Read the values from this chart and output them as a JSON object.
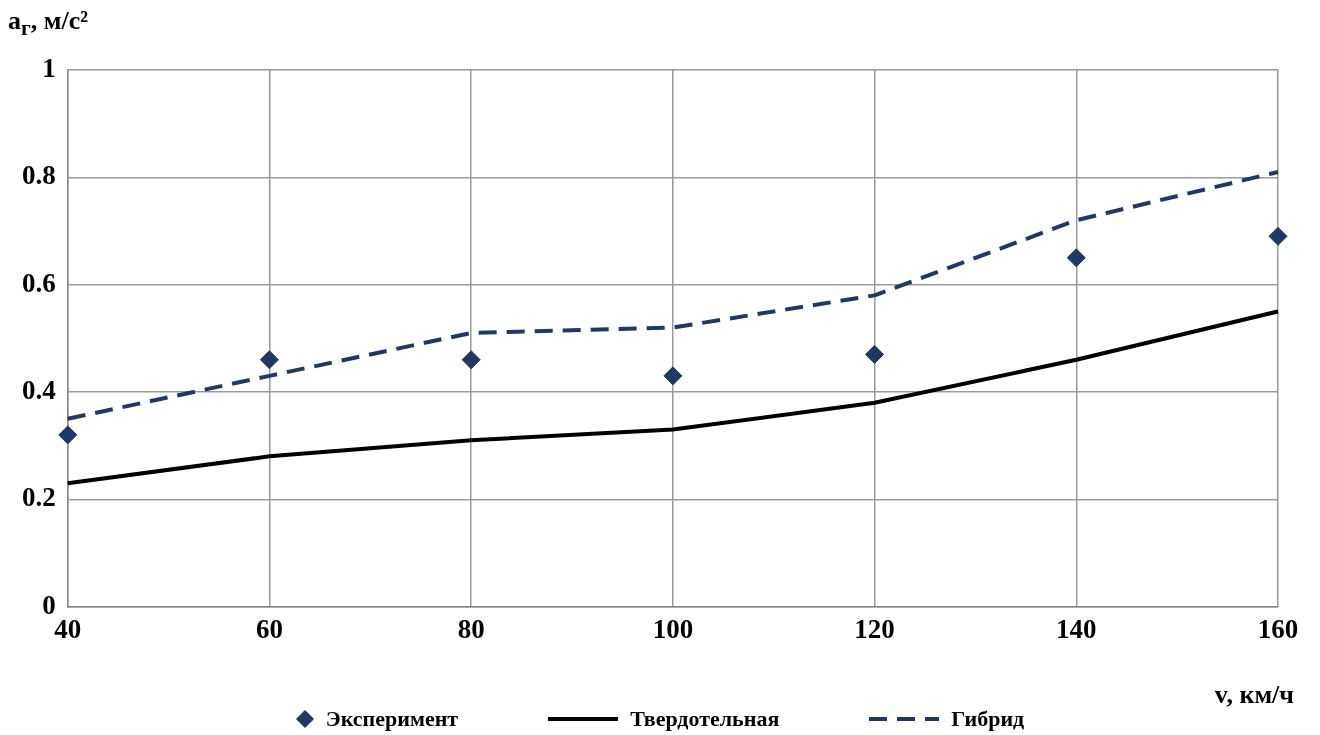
{
  "chart_data": {
    "type": "line",
    "xlabel": "v, км/ч",
    "ylabel": "a$_{г}$, м/с²",
    "x": [
      40,
      60,
      80,
      100,
      120,
      140,
      160
    ],
    "series": [
      {
        "name": "Эксперимент",
        "type": "scatter",
        "marker": "diamond",
        "color": "#1f3864",
        "values": [
          0.32,
          0.46,
          0.46,
          0.43,
          0.47,
          0.65,
          0.69
        ]
      },
      {
        "name": "Твердотельная",
        "type": "line",
        "marker": "none",
        "line_style": "solid",
        "color": "#000000",
        "values": [
          0.23,
          0.28,
          0.31,
          0.33,
          0.38,
          0.46,
          0.55
        ]
      },
      {
        "name": "Гибрид",
        "type": "line",
        "marker": "none",
        "line_style": "dashed",
        "color": "#1f3864",
        "values": [
          0.35,
          0.43,
          0.51,
          0.52,
          0.58,
          0.72,
          0.81
        ]
      }
    ],
    "xlim": [
      40,
      160
    ],
    "xticks": [
      40,
      60,
      80,
      100,
      120,
      140,
      160
    ],
    "ylim": [
      0,
      1
    ],
    "yticks": [
      0,
      0.2,
      0.4,
      0.6,
      0.8,
      1
    ],
    "grid": true,
    "legend": "bottom"
  }
}
